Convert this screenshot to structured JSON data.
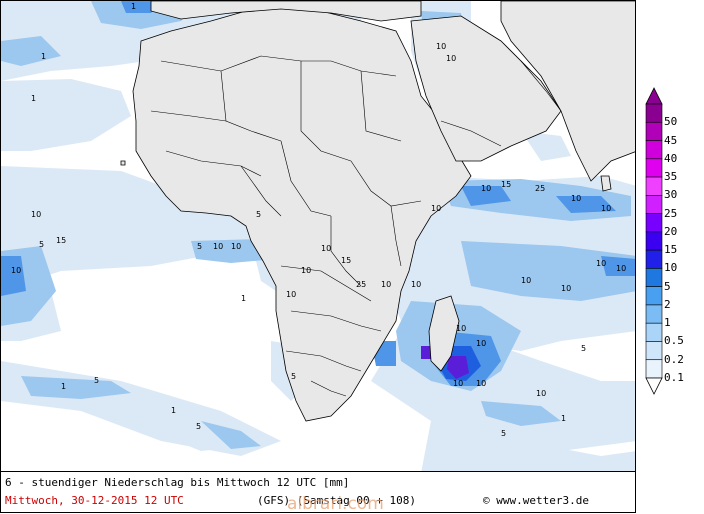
{
  "map": {
    "region": "Africa",
    "colors": {
      "ocean": "#ffffff",
      "land": "#e8e8e8",
      "border": "#000000",
      "precip_light": "#dbe9f7",
      "precip_mid": "#9cc7ee",
      "precip_blue": "#4f95e8",
      "precip_deep": "#1e5fe0",
      "precip_violet": "#5a1ed8"
    },
    "sample_values": [
      "1",
      "5",
      "10",
      "15",
      "25"
    ]
  },
  "scale": {
    "labels": [
      "50",
      "45",
      "40",
      "35",
      "30",
      "25",
      "20",
      "15",
      "10",
      "5",
      "2",
      "1",
      "0.5",
      "0.2",
      "0.1"
    ],
    "colors": [
      "#8a0090",
      "#b000b8",
      "#d000dc",
      "#e000f0",
      "#f040ff",
      "#d020ff",
      "#7800ff",
      "#3c00f0",
      "#2020e8",
      "#1e78e0",
      "#4aa0f0",
      "#7cbcf4",
      "#aad4f8",
      "#cfe6fa",
      "#e8f3fc"
    ]
  },
  "caption": {
    "title": "6 - stuendiger Niederschlag bis Mittwoch 12 UTC [mm]",
    "date": "Mittwoch, 30-12-2015  12 UTC",
    "model": "(GFS)  (Samstag 00 + 108)",
    "copyright": "© www.wetter3.de"
  },
  "watermark": "albrari.com"
}
